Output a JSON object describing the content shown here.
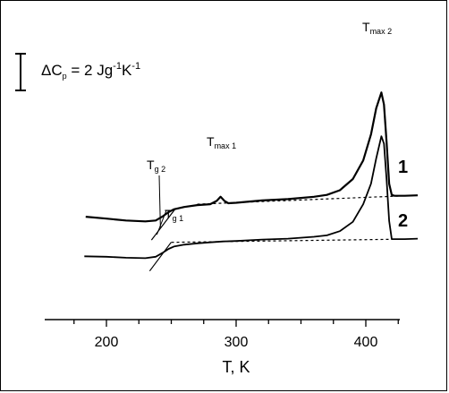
{
  "chart_data": {
    "type": "line",
    "title": "",
    "xlabel": "T, K",
    "ylabel": "",
    "xlim": [
      175,
      445
    ],
    "x_ticks": [
      200,
      300,
      400
    ],
    "y_axis": "unlabeled offset heat capacity (curves vertically shifted)",
    "scale_bar": "ΔCp = 2 Jg-1K-1",
    "series": [
      {
        "name": "1",
        "x": [
          184,
          200,
          215,
          230,
          238,
          243,
          248,
          252,
          260,
          270,
          280,
          285,
          288,
          291,
          294,
          300,
          320,
          340,
          360,
          370,
          380,
          390,
          398,
          404,
          408,
          412,
          414,
          416,
          418,
          420,
          422,
          430,
          440
        ],
        "y": [
          0.95,
          0.75,
          0.55,
          0.45,
          0.55,
          0.95,
          1.45,
          1.75,
          2.0,
          2.2,
          2.3,
          2.65,
          3.1,
          2.65,
          2.4,
          2.45,
          2.7,
          2.85,
          3.1,
          3.3,
          3.8,
          5.0,
          7.0,
          9.8,
          12.6,
          14.3,
          13.0,
          9.0,
          4.5,
          3.3,
          3.2,
          3.2,
          3.25
        ],
        "baseline": {
          "x": [
            270,
            430
          ],
          "y": [
            2.3,
            3.2
          ]
        }
      },
      {
        "name": "2",
        "x": [
          183,
          200,
          215,
          230,
          238,
          243,
          248,
          252,
          260,
          270,
          280,
          290,
          300,
          320,
          340,
          360,
          370,
          380,
          390,
          398,
          404,
          408,
          412,
          414,
          416,
          418,
          420,
          422,
          430,
          440
        ],
        "y": [
          -3.3,
          -3.35,
          -3.45,
          -3.5,
          -3.35,
          -2.95,
          -2.5,
          -2.25,
          -2.05,
          -1.9,
          -1.8,
          -1.7,
          -1.65,
          -1.5,
          -1.4,
          -1.2,
          -1.05,
          -0.6,
          0.4,
          2.3,
          4.5,
          7.2,
          9.6,
          8.8,
          5.0,
          0.5,
          -1.45,
          -1.45,
          -1.45,
          -1.4
        ],
        "baseline": {
          "x": [
            250,
            430
          ],
          "y": [
            -1.8,
            -1.45
          ]
        }
      }
    ],
    "annotations": [
      {
        "label": "T",
        "sub": "max 2",
        "x": 412,
        "y": 14.3
      },
      {
        "label": "T",
        "sub": "max 1",
        "x": 288,
        "y": 3.1
      },
      {
        "label": "T",
        "sub": "g 2",
        "x": 243,
        "y": 0.95
      },
      {
        "label": "T",
        "sub": "g 1",
        "x": 243,
        "y": -2.95
      }
    ]
  },
  "labels": {
    "scale_main": "ΔC",
    "scale_sub": "p",
    "scale_eq": " = 2 Jg",
    "scale_exp1": "-1",
    "scale_k": "K",
    "scale_exp2": "-1",
    "tick_200": "200",
    "tick_300": "300",
    "tick_400": "400",
    "xlabel": "T, K",
    "curve1": "1",
    "curve2": "2",
    "tmax2_main": "T",
    "tmax2_sub": "max 2",
    "tmax1_main": "T",
    "tmax1_sub": "max 1",
    "tg2_main": "T",
    "tg2_sub": "g 2",
    "tg1_main": "T",
    "tg1_sub": "g 1"
  }
}
